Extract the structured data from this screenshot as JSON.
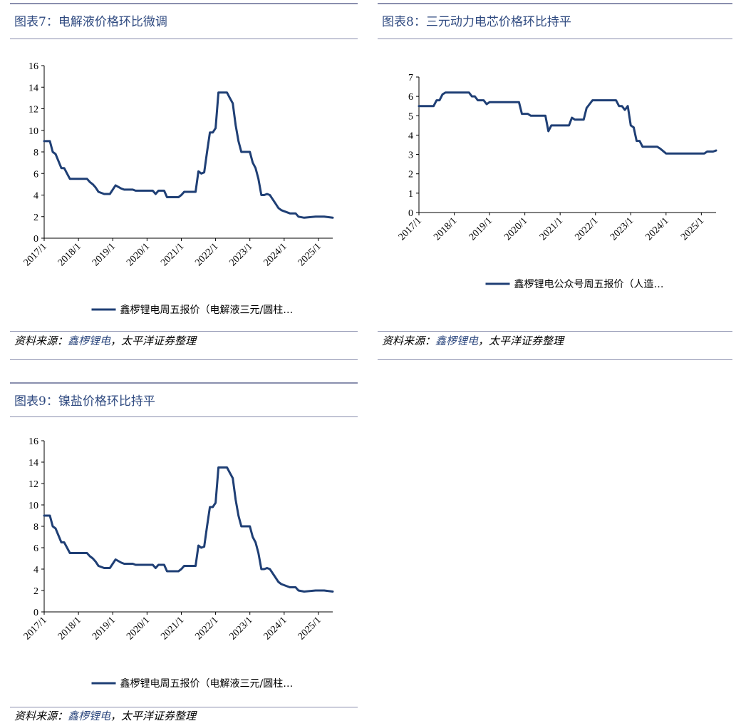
{
  "colors": {
    "series": "#1f3f75",
    "title": "#2f4a80",
    "rule": "#8a8fae"
  },
  "panels": [
    {
      "title": "图表7：电解液价格环比微调",
      "source_prefix": "资料来源：",
      "source_highlight": "鑫椤锂电",
      "source_suffix": "，太平洋证券整理"
    },
    {
      "title": "图表8：三元动力电芯价格环比持平",
      "source_prefix": "资料来源：",
      "source_highlight": "鑫椤锂电",
      "source_suffix": "，太平洋证券整理"
    },
    {
      "title": "图表9：镍盐价格环比持平",
      "source_prefix": "资料来源：",
      "source_highlight": "鑫椤锂电",
      "source_suffix": "，太平洋证券整理"
    }
  ],
  "chart_data": [
    {
      "type": "line",
      "title": "图表7：电解液价格环比微调",
      "xlabel": "",
      "ylabel": "",
      "x_tick_labels": [
        "2017/1",
        "2018/1",
        "2019/1",
        "2020/1",
        "2021/1",
        "2022/1",
        "2023/1",
        "2024/1",
        "2025/1"
      ],
      "x_range": [
        "2017/1",
        "2025/6"
      ],
      "ylim": [
        0,
        16
      ],
      "y_ticks": [
        0,
        2,
        4,
        6,
        8,
        10,
        12,
        14,
        16
      ],
      "grid": false,
      "legend_position": "bottom",
      "series": [
        {
          "name": "鑫椤锂电周五报价（电解液三元/圆柱…",
          "points": [
            [
              "2017-01",
              9.0
            ],
            [
              "2017-03",
              9.0
            ],
            [
              "2017-04",
              8.0
            ],
            [
              "2017-05",
              7.8
            ],
            [
              "2017-07",
              6.5
            ],
            [
              "2017-08",
              6.5
            ],
            [
              "2017-09",
              6.0
            ],
            [
              "2017-10",
              5.5
            ],
            [
              "2017-12",
              5.5
            ],
            [
              "2018-01",
              5.5
            ],
            [
              "2018-04",
              5.5
            ],
            [
              "2018-05",
              5.2
            ],
            [
              "2018-06",
              5.0
            ],
            [
              "2018-07",
              4.7
            ],
            [
              "2018-08",
              4.3
            ],
            [
              "2018-09",
              4.2
            ],
            [
              "2018-10",
              4.1
            ],
            [
              "2018-11",
              4.1
            ],
            [
              "2018-12",
              4.1
            ],
            [
              "2019-02",
              4.9
            ],
            [
              "2019-04",
              4.6
            ],
            [
              "2019-05",
              4.5
            ],
            [
              "2019-08",
              4.5
            ],
            [
              "2019-09",
              4.4
            ],
            [
              "2019-11",
              4.4
            ],
            [
              "2020-03",
              4.4
            ],
            [
              "2020-04",
              4.1
            ],
            [
              "2020-05",
              4.4
            ],
            [
              "2020-07",
              4.4
            ],
            [
              "2020-08",
              3.8
            ],
            [
              "2020-12",
              3.8
            ],
            [
              "2021-01",
              4.0
            ],
            [
              "2021-02",
              4.3
            ],
            [
              "2021-06",
              4.3
            ],
            [
              "2021-07",
              6.2
            ],
            [
              "2021-08",
              6.0
            ],
            [
              "2021-09",
              6.1
            ],
            [
              "2021-10",
              8.0
            ],
            [
              "2021-11",
              9.8
            ],
            [
              "2021-12",
              9.8
            ],
            [
              "2022-01",
              10.2
            ],
            [
              "2022-02",
              13.5
            ],
            [
              "2022-05",
              13.5
            ],
            [
              "2022-06",
              13.0
            ],
            [
              "2022-07",
              12.5
            ],
            [
              "2022-08",
              10.5
            ],
            [
              "2022-09",
              9.0
            ],
            [
              "2022-10",
              8.0
            ],
            [
              "2022-12",
              8.0
            ],
            [
              "2023-01",
              8.0
            ],
            [
              "2023-02",
              7.0
            ],
            [
              "2023-03",
              6.5
            ],
            [
              "2023-04",
              5.5
            ],
            [
              "2023-05",
              4.0
            ],
            [
              "2023-06",
              4.0
            ],
            [
              "2023-07",
              4.1
            ],
            [
              "2023-08",
              4.0
            ],
            [
              "2023-09",
              3.6
            ],
            [
              "2023-10",
              3.2
            ],
            [
              "2023-11",
              2.8
            ],
            [
              "2023-12",
              2.6
            ],
            [
              "2024-01",
              2.5
            ],
            [
              "2024-02",
              2.4
            ],
            [
              "2024-03",
              2.3
            ],
            [
              "2024-05",
              2.3
            ],
            [
              "2024-06",
              2.0
            ],
            [
              "2024-08",
              1.9
            ],
            [
              "2024-10",
              1.95
            ],
            [
              "2024-12",
              2.0
            ],
            [
              "2025-03",
              2.0
            ],
            [
              "2025-06",
              1.9
            ]
          ]
        }
      ]
    },
    {
      "type": "line",
      "title": "图表8：三元动力电芯价格环比持平",
      "xlabel": "",
      "ylabel": "",
      "x_tick_labels": [
        "2017/1",
        "2018/1",
        "2019/1",
        "2020/1",
        "2021/1",
        "2022/1",
        "2023/1",
        "2024/1",
        "2025/1"
      ],
      "x_range": [
        "2017/1",
        "2025/6"
      ],
      "ylim": [
        0,
        7
      ],
      "y_ticks": [
        0,
        1,
        2,
        3,
        4,
        5,
        6,
        7
      ],
      "grid": false,
      "legend_position": "bottom",
      "series": [
        {
          "name": "鑫椤锂电公众号周五报价（人造…",
          "points": [
            [
              "2017-01",
              5.5
            ],
            [
              "2017-06",
              5.5
            ],
            [
              "2017-07",
              5.8
            ],
            [
              "2017-08",
              5.8
            ],
            [
              "2017-09",
              6.1
            ],
            [
              "2017-10",
              6.2
            ],
            [
              "2018-06",
              6.2
            ],
            [
              "2018-07",
              6.0
            ],
            [
              "2018-08",
              6.0
            ],
            [
              "2018-09",
              5.8
            ],
            [
              "2018-11",
              5.8
            ],
            [
              "2018-12",
              5.6
            ],
            [
              "2019-01",
              5.7
            ],
            [
              "2019-11",
              5.7
            ],
            [
              "2019-12",
              5.1
            ],
            [
              "2020-02",
              5.1
            ],
            [
              "2020-03",
              5.0
            ],
            [
              "2020-08",
              5.0
            ],
            [
              "2020-09",
              4.2
            ],
            [
              "2020-10",
              4.5
            ],
            [
              "2021-04",
              4.5
            ],
            [
              "2021-05",
              4.9
            ],
            [
              "2021-06",
              4.8
            ],
            [
              "2021-09",
              4.8
            ],
            [
              "2021-10",
              5.4
            ],
            [
              "2021-11",
              5.6
            ],
            [
              "2021-12",
              5.8
            ],
            [
              "2022-08",
              5.8
            ],
            [
              "2022-09",
              5.5
            ],
            [
              "2022-10",
              5.5
            ],
            [
              "2022-11",
              5.3
            ],
            [
              "2022-12",
              5.5
            ],
            [
              "2023-01",
              4.5
            ],
            [
              "2023-02",
              4.4
            ],
            [
              "2023-03",
              3.7
            ],
            [
              "2023-04",
              3.7
            ],
            [
              "2023-05",
              3.4
            ],
            [
              "2023-10",
              3.4
            ],
            [
              "2023-11",
              3.3
            ],
            [
              "2024-01",
              3.05
            ],
            [
              "2025-02",
              3.05
            ],
            [
              "2025-03",
              3.15
            ],
            [
              "2025-05",
              3.15
            ],
            [
              "2025-06",
              3.2
            ]
          ]
        }
      ]
    },
    {
      "type": "line",
      "title": "图表9：镍盐价格环比持平",
      "xlabel": "",
      "ylabel": "",
      "x_tick_labels": [
        "2017/1",
        "2018/1",
        "2019/1",
        "2020/1",
        "2021/1",
        "2022/1",
        "2023/1",
        "2024/1",
        "2025/1"
      ],
      "x_range": [
        "2017/1",
        "2025/6"
      ],
      "ylim": [
        0,
        16
      ],
      "y_ticks": [
        0,
        2,
        4,
        6,
        8,
        10,
        12,
        14,
        16
      ],
      "grid": false,
      "legend_position": "bottom",
      "series": [
        {
          "name": "鑫椤锂电周五报价（电解液三元/圆柱…",
          "points": [
            [
              "2017-01",
              9.0
            ],
            [
              "2017-03",
              9.0
            ],
            [
              "2017-04",
              8.0
            ],
            [
              "2017-05",
              7.8
            ],
            [
              "2017-07",
              6.5
            ],
            [
              "2017-08",
              6.5
            ],
            [
              "2017-09",
              6.0
            ],
            [
              "2017-10",
              5.5
            ],
            [
              "2017-12",
              5.5
            ],
            [
              "2018-01",
              5.5
            ],
            [
              "2018-04",
              5.5
            ],
            [
              "2018-05",
              5.2
            ],
            [
              "2018-06",
              5.0
            ],
            [
              "2018-07",
              4.7
            ],
            [
              "2018-08",
              4.3
            ],
            [
              "2018-09",
              4.2
            ],
            [
              "2018-10",
              4.1
            ],
            [
              "2018-11",
              4.1
            ],
            [
              "2018-12",
              4.1
            ],
            [
              "2019-02",
              4.9
            ],
            [
              "2019-04",
              4.6
            ],
            [
              "2019-05",
              4.5
            ],
            [
              "2019-08",
              4.5
            ],
            [
              "2019-09",
              4.4
            ],
            [
              "2019-11",
              4.4
            ],
            [
              "2020-03",
              4.4
            ],
            [
              "2020-04",
              4.1
            ],
            [
              "2020-05",
              4.4
            ],
            [
              "2020-07",
              4.4
            ],
            [
              "2020-08",
              3.8
            ],
            [
              "2020-12",
              3.8
            ],
            [
              "2021-01",
              4.0
            ],
            [
              "2021-02",
              4.3
            ],
            [
              "2021-06",
              4.3
            ],
            [
              "2021-07",
              6.2
            ],
            [
              "2021-08",
              6.0
            ],
            [
              "2021-09",
              6.1
            ],
            [
              "2021-10",
              8.0
            ],
            [
              "2021-11",
              9.8
            ],
            [
              "2021-12",
              9.8
            ],
            [
              "2022-01",
              10.2
            ],
            [
              "2022-02",
              13.5
            ],
            [
              "2022-05",
              13.5
            ],
            [
              "2022-06",
              13.0
            ],
            [
              "2022-07",
              12.5
            ],
            [
              "2022-08",
              10.5
            ],
            [
              "2022-09",
              9.0
            ],
            [
              "2022-10",
              8.0
            ],
            [
              "2022-12",
              8.0
            ],
            [
              "2023-01",
              8.0
            ],
            [
              "2023-02",
              7.0
            ],
            [
              "2023-03",
              6.5
            ],
            [
              "2023-04",
              5.5
            ],
            [
              "2023-05",
              4.0
            ],
            [
              "2023-06",
              4.0
            ],
            [
              "2023-07",
              4.1
            ],
            [
              "2023-08",
              4.0
            ],
            [
              "2023-09",
              3.6
            ],
            [
              "2023-10",
              3.2
            ],
            [
              "2023-11",
              2.8
            ],
            [
              "2023-12",
              2.6
            ],
            [
              "2024-01",
              2.5
            ],
            [
              "2024-02",
              2.4
            ],
            [
              "2024-03",
              2.3
            ],
            [
              "2024-05",
              2.3
            ],
            [
              "2024-06",
              2.0
            ],
            [
              "2024-08",
              1.9
            ],
            [
              "2024-10",
              1.95
            ],
            [
              "2024-12",
              2.0
            ],
            [
              "2025-03",
              2.0
            ],
            [
              "2025-06",
              1.9
            ]
          ]
        }
      ]
    }
  ]
}
